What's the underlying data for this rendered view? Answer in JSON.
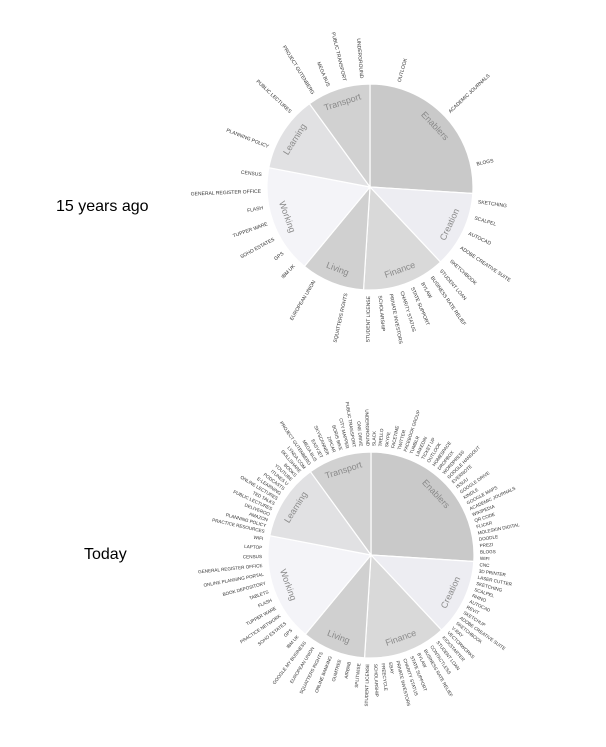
{
  "chart_data": [
    {
      "type": "pie",
      "title": "15 years ago",
      "categories": [
        "Enablers",
        "Creation",
        "Finance",
        "Living",
        "Working",
        "Learning",
        "Transport"
      ],
      "values": [
        26,
        12,
        13,
        10,
        17,
        12,
        10
      ],
      "colors": [
        "#c9c9c9",
        "#ededf2",
        "#d9d9d9",
        "#d0d0d0",
        "#f4f4f8",
        "#e1e1e3",
        "#d1d1d1"
      ],
      "labels": [
        [
          "OUTLOOK",
          "ACADEMIC JOURNALS",
          "BLOGS"
        ],
        [
          "SKETCHING",
          "SCALPEL",
          "AUTOCAD",
          "ADOBE CREATIVE SUITE",
          "SKETCHBOOK"
        ],
        [
          "STUDENT LOAN",
          "BUSINESS RATE RELIEF",
          "BYLAW",
          "STATE SUPPORT",
          "CHARITY STATUS",
          "PRIVATE INVESTORS",
          "SCHOLARSHIP",
          "STUDENT LICENSE"
        ],
        [
          "SQUATTERS RIGHTS",
          "EUROPEAN UNION"
        ],
        [
          "IBM UK",
          "GPS",
          "SOHO ESTATES",
          "TUPPER WARE",
          "FLASH",
          "GENERAL REGISTER OFFICE",
          "CENSUS"
        ],
        [
          "PLANNING POLICY",
          "PUBLIC LECTURES"
        ],
        [
          "PROJECT GUTENBERG",
          "MEGA BUS",
          "PUBLIC TRANSPORT",
          "UNDERGROUND"
        ]
      ]
    },
    {
      "type": "pie",
      "title": "Today",
      "categories": [
        "Enablers",
        "Creation",
        "Finance",
        "Living",
        "Working",
        "Learning",
        "Transport"
      ],
      "values": [
        26,
        12,
        13,
        10,
        17,
        12,
        10
      ],
      "colors": [
        "#c9c9c9",
        "#ededf2",
        "#d9d9d9",
        "#d0d0d0",
        "#f4f4f8",
        "#e1e1e3",
        "#d1d1d1"
      ],
      "labels": [
        [
          "SLACK",
          "TRELLO",
          "SKYPE",
          "FACETIME",
          "TWITTER",
          "FACEBOOK GROUP",
          "TUMBLR",
          "LINKEDIN",
          "TICKET UP",
          "OUTLOOK",
          "HOMESPACE",
          "DROPBOX",
          "WORDPRESS",
          "GOOGLE HANGOUT",
          "EVERNOTE",
          "ISSUU",
          "GOOGLE DRIVE",
          "KINDLE",
          "GOOGLE MAPS",
          "ACADEMIC JOURNALS",
          "WIKIPEDIA",
          "QR CODE",
          "FLICKR",
          "MOLESKIN DIGITAL",
          "DOODLE",
          "PREZI",
          "BLOGS",
          "WIFI"
        ],
        [
          "CNC",
          "3D PRINTER",
          "LASER CUTTER",
          "SKETCHING",
          "SCALPEL",
          "RHINO",
          "AUTOCAD",
          "REVIT",
          "SKETCHUP",
          "ADOBE CREATIVE SUITE",
          "SKETCHBOOK",
          "V-RAY",
          "VECTORWORKS"
        ],
        [
          "KICKSTARTER",
          "STUDENT LOAN",
          "CONTACTLESS",
          "BUSINESS RATE RELIEF",
          "BYLAW",
          "STATE SUPPORT",
          "CHARITY STATUS",
          "PRIVATE INVESTORS",
          "EBAY",
          "FREECYCLE",
          "SCHOLARSHIP",
          "STUDENT LICENSE"
        ],
        [
          "SPLITWISE",
          "AIRBNB",
          "GUMTREE",
          "ONLINE BANKING",
          "SQUATTERS RIGHTS",
          "EUROPEAN UNION",
          "GOOGLE MY BUSINESS"
        ],
        [
          "IBM UK",
          "GPS",
          "SOHO ESTATES",
          "PRACTICE NETWORK",
          "TUPPER WARE",
          "FLASH",
          "TABLETS",
          "BOOK DEPOSITORY",
          "ONLINE PLANNING PORTAL",
          "GENERAL REGISTER OFFICE",
          "CENSUS",
          "LAPTOP",
          "WIFI"
        ],
        [
          "PRACTICE RESOURCES",
          "PLANNING POLICY",
          "AMAZON",
          "DELIVEROO",
          "PUBLIC LECTURES",
          "TED TALKS",
          "ONLINE LECTURES",
          "E-LEARNING",
          "PODCASTS",
          "ITUNES U",
          "YOUTUBE",
          "BOOKS",
          "SKILLSHARE",
          "LYNDA.COM"
        ],
        [
          "PROJECT GUTENBERG",
          "MEGA BUS",
          "EASYJET",
          "SKYSCANNER",
          "ZIPCAR",
          "BORIS BIKE",
          "CITY MAPPER",
          "PUBLIC TRANSPORT",
          "ONE DRIVE",
          "UNDERGROUND"
        ]
      ]
    }
  ]
}
